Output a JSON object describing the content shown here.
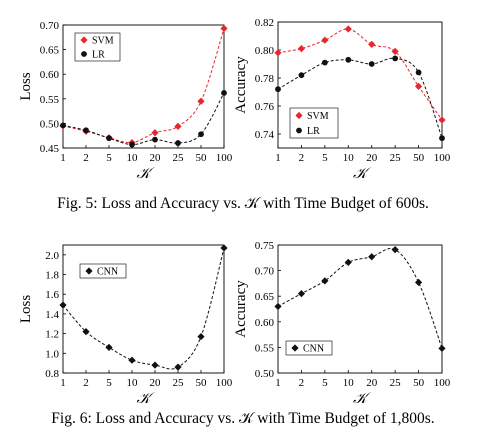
{
  "captions": {
    "fig5": "Fig. 5: Loss and Accuracy vs. 𝒦 with Time Budget of 600s.",
    "fig6": "Fig. 6: Loss and Accuracy vs. 𝒦 with Time Budget of 1,800s."
  },
  "colors": {
    "svm": "#e8262b",
    "lr": "#111111",
    "cnn": "#111111"
  },
  "chart_data": [
    {
      "id": "fig5-loss",
      "type": "scatter",
      "categories": [
        "1",
        "2",
        "5",
        "10",
        "20",
        "25",
        "50",
        "100"
      ],
      "xlabel": "𝒦",
      "ylabel": "Loss",
      "ylim": [
        0.45,
        0.7
      ],
      "yticks": [
        "0.45",
        "0.50",
        "0.55",
        "0.60",
        "0.65",
        "0.70"
      ],
      "legend": "top-left",
      "series": [
        {
          "name": "SVM",
          "values": [
            0.495,
            0.484,
            0.471,
            0.461,
            0.481,
            0.494,
            0.545,
            0.693
          ],
          "color": "#e8262b",
          "marker": "diamond"
        },
        {
          "name": "LR",
          "values": [
            0.496,
            0.486,
            0.47,
            0.457,
            0.467,
            0.46,
            0.478,
            0.562
          ],
          "color": "#111111",
          "marker": "circle"
        }
      ]
    },
    {
      "id": "fig5-acc",
      "type": "scatter",
      "categories": [
        "1",
        "2",
        "5",
        "10",
        "20",
        "25",
        "50",
        "100"
      ],
      "xlabel": "𝒦",
      "ylabel": "Accuracy",
      "ylim": [
        0.73,
        0.82
      ],
      "yticks": [
        "0.74",
        "0.76",
        "0.78",
        "0.80",
        "0.82"
      ],
      "legend": "bottom-center",
      "series": [
        {
          "name": "SVM",
          "values": [
            0.798,
            0.801,
            0.807,
            0.815,
            0.804,
            0.799,
            0.774,
            0.75
          ],
          "color": "#e8262b",
          "marker": "diamond"
        },
        {
          "name": "LR",
          "values": [
            0.772,
            0.782,
            0.791,
            0.793,
            0.79,
            0.794,
            0.784,
            0.737
          ],
          "color": "#111111",
          "marker": "circle"
        }
      ]
    },
    {
      "id": "fig6-loss",
      "type": "scatter",
      "categories": [
        "1",
        "2",
        "5",
        "10",
        "20",
        "25",
        "50",
        "100"
      ],
      "xlabel": "𝒦",
      "ylabel": "Loss",
      "ylim": [
        0.8,
        2.1
      ],
      "yticks": [
        "0.8",
        "1.0",
        "1.2",
        "1.4",
        "1.6",
        "1.8",
        "2.0"
      ],
      "legend": "top-left",
      "series": [
        {
          "name": "CNN",
          "values": [
            1.49,
            1.22,
            1.06,
            0.93,
            0.88,
            0.86,
            1.17,
            2.07
          ],
          "color": "#111111",
          "marker": "diamond"
        }
      ]
    },
    {
      "id": "fig6-acc",
      "type": "scatter",
      "categories": [
        "1",
        "2",
        "5",
        "10",
        "20",
        "25",
        "50",
        "100"
      ],
      "xlabel": "𝒦",
      "ylabel": "Accuracy",
      "ylim": [
        0.5,
        0.75
      ],
      "yticks": [
        "0.50",
        "0.55",
        "0.60",
        "0.65",
        "0.70",
        "0.75"
      ],
      "legend": "bottom-left",
      "series": [
        {
          "name": "CNN",
          "values": [
            0.63,
            0.655,
            0.68,
            0.716,
            0.727,
            0.741,
            0.677,
            0.548
          ],
          "color": "#111111",
          "marker": "diamond"
        }
      ]
    }
  ]
}
